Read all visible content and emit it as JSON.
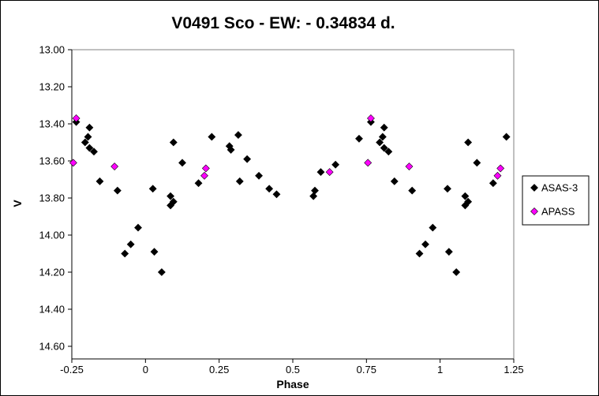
{
  "chart_data": {
    "type": "scatter",
    "title": "V0491 Sco - EW: - 0.34834 d.",
    "xlabel": "Phase",
    "ylabel": "V",
    "xlim": [
      -0.25,
      1.25
    ],
    "ylim": [
      13.0,
      14.65
    ],
    "y_inverted": true,
    "x_ticks": [
      -0.25,
      0,
      0.25,
      0.5,
      0.75,
      1,
      1.25
    ],
    "x_tick_labels": [
      "-0.25",
      "0",
      "0.25",
      "0.5",
      "0.75",
      "1",
      "1.25"
    ],
    "y_ticks": [
      13.0,
      13.2,
      13.4,
      13.6,
      13.8,
      14.0,
      14.2,
      14.4,
      14.6
    ],
    "y_tick_labels": [
      "13.00",
      "13.20",
      "13.40",
      "13.60",
      "13.80",
      "14.00",
      "14.20",
      "14.40",
      "14.60"
    ],
    "grid": false,
    "legend_position": "right",
    "series": [
      {
        "name": "ASAS-3",
        "color": "#000000",
        "marker": "diamond",
        "points": [
          [
            -0.235,
            13.39
          ],
          [
            -0.205,
            13.5
          ],
          [
            -0.195,
            13.47
          ],
          [
            -0.19,
            13.53
          ],
          [
            -0.19,
            13.42
          ],
          [
            -0.175,
            13.55
          ],
          [
            -0.155,
            13.71
          ],
          [
            -0.095,
            13.76
          ],
          [
            -0.07,
            14.1
          ],
          [
            -0.05,
            14.05
          ],
          [
            -0.025,
            13.96
          ],
          [
            0.03,
            14.09
          ],
          [
            0.055,
            14.2
          ],
          [
            0.025,
            13.75
          ],
          [
            0.085,
            13.79
          ],
          [
            0.085,
            13.84
          ],
          [
            0.095,
            13.82
          ],
          [
            0.095,
            13.5
          ],
          [
            0.125,
            13.61
          ],
          [
            0.18,
            13.72
          ],
          [
            0.225,
            13.47
          ],
          [
            0.285,
            13.52
          ],
          [
            0.29,
            13.54
          ],
          [
            0.315,
            13.46
          ],
          [
            0.32,
            13.71
          ],
          [
            0.345,
            13.59
          ],
          [
            0.385,
            13.68
          ],
          [
            0.42,
            13.75
          ],
          [
            0.445,
            13.78
          ],
          [
            0.57,
            13.79
          ],
          [
            0.575,
            13.76
          ],
          [
            0.595,
            13.66
          ],
          [
            0.645,
            13.62
          ],
          [
            0.725,
            13.48
          ],
          [
            0.765,
            13.39
          ],
          [
            0.795,
            13.5
          ],
          [
            0.805,
            13.47
          ],
          [
            0.81,
            13.53
          ],
          [
            0.81,
            13.42
          ],
          [
            0.825,
            13.55
          ],
          [
            0.845,
            13.71
          ],
          [
            0.905,
            13.76
          ],
          [
            0.93,
            14.1
          ],
          [
            0.95,
            14.05
          ],
          [
            0.975,
            13.96
          ],
          [
            1.025,
            13.75
          ],
          [
            1.03,
            14.09
          ],
          [
            1.055,
            14.2
          ],
          [
            1.085,
            13.79
          ],
          [
            1.085,
            13.84
          ],
          [
            1.095,
            13.82
          ],
          [
            1.095,
            13.5
          ],
          [
            1.125,
            13.61
          ],
          [
            1.18,
            13.72
          ],
          [
            1.225,
            13.47
          ]
        ]
      },
      {
        "name": "APASS",
        "color": "#ff00ff",
        "marker": "diamond",
        "points": [
          [
            -0.245,
            13.61
          ],
          [
            -0.235,
            13.37
          ],
          [
            -0.105,
            13.63
          ],
          [
            0.2,
            13.68
          ],
          [
            0.205,
            13.64
          ],
          [
            0.625,
            13.66
          ],
          [
            0.755,
            13.61
          ],
          [
            0.765,
            13.37
          ],
          [
            0.895,
            13.63
          ],
          [
            1.195,
            13.68
          ],
          [
            1.205,
            13.64
          ]
        ]
      }
    ]
  }
}
